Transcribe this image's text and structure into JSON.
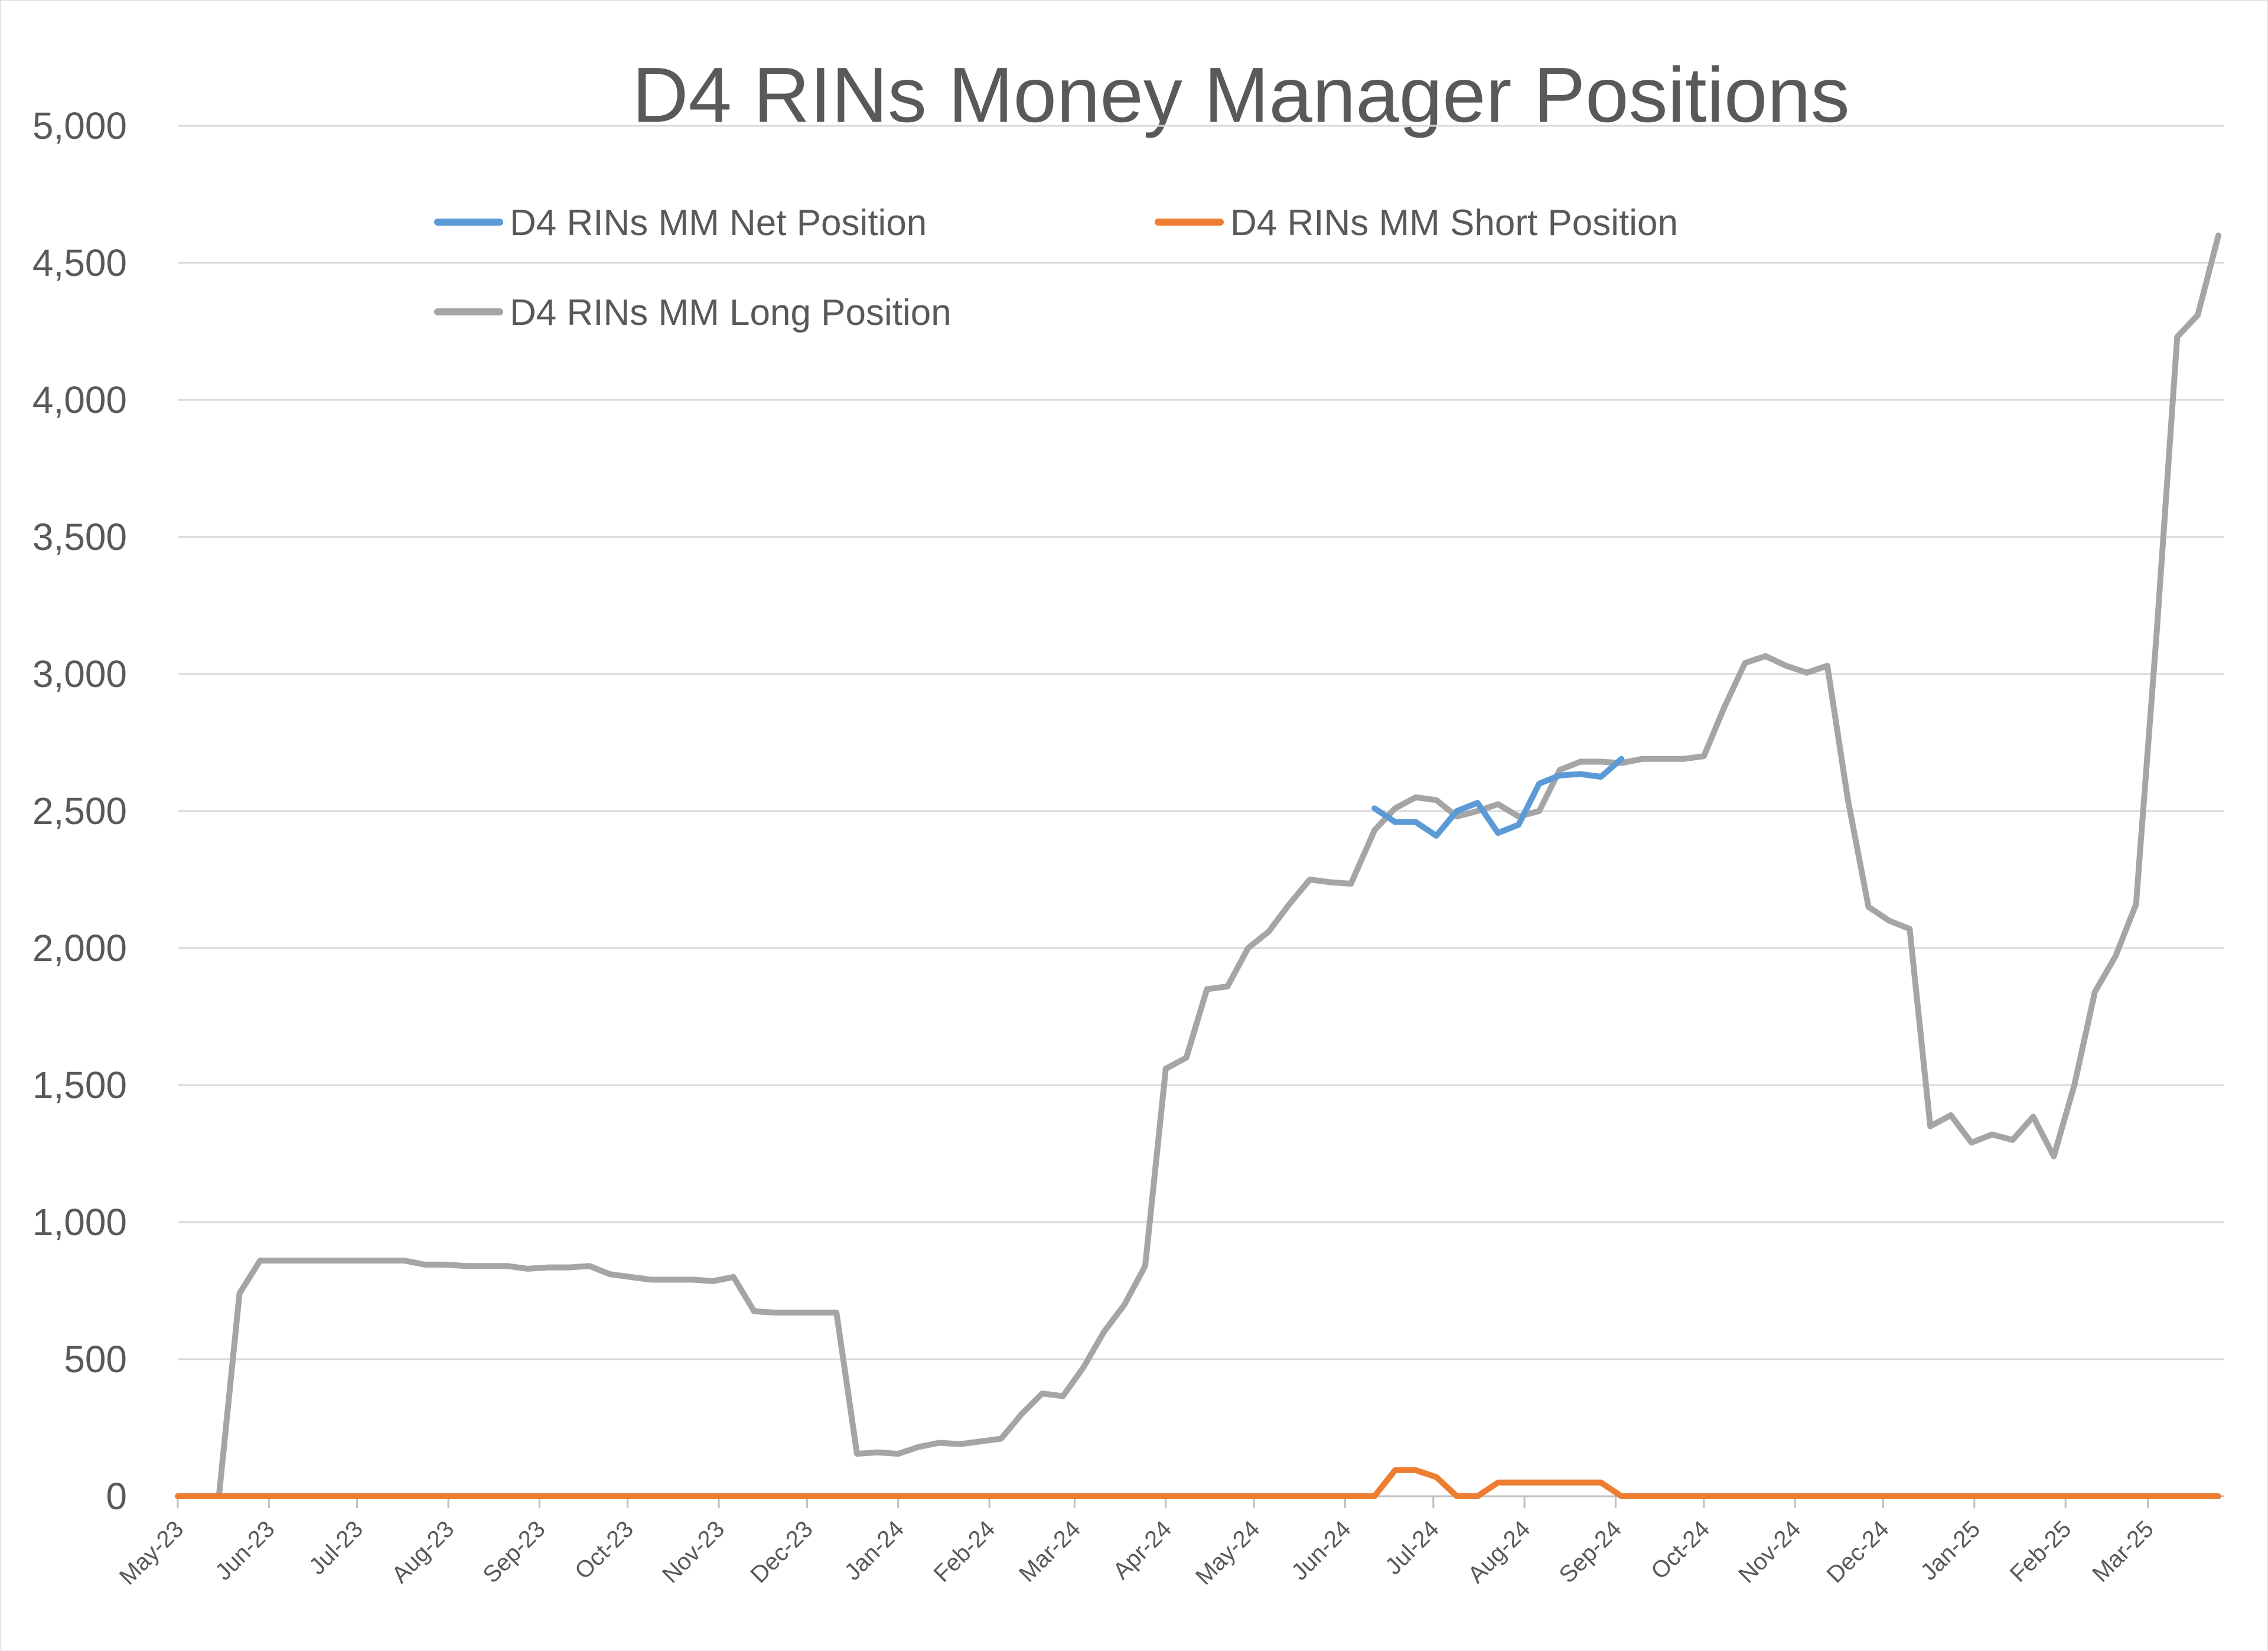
{
  "chart_data": {
    "type": "line",
    "title": "D4 RINs Money Manager Positions",
    "xlabel": "",
    "ylabel": "",
    "ylim": [
      0,
      5000
    ],
    "y_ticks": [
      0,
      500,
      1000,
      1500,
      2000,
      2500,
      3000,
      3500,
      4000,
      4500,
      5000
    ],
    "y_tick_labels": [
      "0",
      "500",
      "1,000",
      "1,500",
      "2,000",
      "2,500",
      "3,000",
      "3,500",
      "4,000",
      "4,500",
      "5,000"
    ],
    "x_tick_labels": [
      "May-23",
      "Jun-23",
      "Jul-23",
      "Aug-23",
      "Sep-23",
      "Oct-23",
      "Nov-23",
      "Dec-23",
      "Jan-24",
      "Feb-24",
      "Mar-24",
      "Apr-24",
      "May-24",
      "Jun-24",
      "Jul-24",
      "Aug-24",
      "Sep-24",
      "Oct-24",
      "Nov-24",
      "Dec-24",
      "Jan-25",
      "Feb-25",
      "Mar-25"
    ],
    "grid": true,
    "legend_position": "top",
    "series": [
      {
        "name": "D4 RINs MM Net Position",
        "color": "#5b9bd5",
        "points": [
          [
            "2024-06-11",
            2510
          ],
          [
            "2024-06-18",
            2460
          ],
          [
            "2024-06-25",
            2460
          ],
          [
            "2024-07-02",
            2410
          ],
          [
            "2024-07-09",
            2500
          ],
          [
            "2024-07-16",
            2530
          ],
          [
            "2024-07-23",
            2420
          ],
          [
            "2024-07-30",
            2450
          ],
          [
            "2024-08-06",
            2600
          ],
          [
            "2024-08-13",
            2630
          ],
          [
            "2024-08-20",
            2635
          ],
          [
            "2024-08-27",
            2625
          ],
          [
            "2024-09-03",
            2690
          ]
        ]
      },
      {
        "name": "D4 RINs MM Short Position",
        "color": "#ed7d31",
        "points": [
          [
            "2023-05-01",
            0
          ],
          [
            "2024-06-11",
            0
          ],
          [
            "2024-06-18",
            95
          ],
          [
            "2024-06-25",
            95
          ],
          [
            "2024-07-02",
            70
          ],
          [
            "2024-07-09",
            0
          ],
          [
            "2024-07-16",
            0
          ],
          [
            "2024-07-23",
            50
          ],
          [
            "2024-07-30",
            50
          ],
          [
            "2024-08-06",
            50
          ],
          [
            "2024-08-13",
            50
          ],
          [
            "2024-08-20",
            50
          ],
          [
            "2024-08-27",
            50
          ],
          [
            "2024-09-03",
            0
          ],
          [
            "2025-03-25",
            0
          ]
        ]
      },
      {
        "name": "D4 RINs MM Long Position",
        "color": "#a5a5a5",
        "points": [
          [
            "2023-05-01",
            0
          ],
          [
            "2023-05-08",
            0
          ],
          [
            "2023-05-15",
            0
          ],
          [
            "2023-05-22",
            740
          ],
          [
            "2023-05-29",
            860
          ],
          [
            "2023-06-05",
            860
          ],
          [
            "2023-06-12",
            860
          ],
          [
            "2023-06-19",
            860
          ],
          [
            "2023-06-26",
            860
          ],
          [
            "2023-07-03",
            860
          ],
          [
            "2023-07-10",
            860
          ],
          [
            "2023-07-17",
            860
          ],
          [
            "2023-07-24",
            845
          ],
          [
            "2023-07-31",
            845
          ],
          [
            "2023-08-07",
            840
          ],
          [
            "2023-08-14",
            840
          ],
          [
            "2023-08-21",
            840
          ],
          [
            "2023-08-28",
            830
          ],
          [
            "2023-09-04",
            835
          ],
          [
            "2023-09-11",
            835
          ],
          [
            "2023-09-18",
            840
          ],
          [
            "2023-09-25",
            810
          ],
          [
            "2023-10-02",
            800
          ],
          [
            "2023-10-09",
            790
          ],
          [
            "2023-10-16",
            790
          ],
          [
            "2023-10-23",
            790
          ],
          [
            "2023-10-30",
            785
          ],
          [
            "2023-11-06",
            800
          ],
          [
            "2023-11-13",
            675
          ],
          [
            "2023-11-20",
            670
          ],
          [
            "2023-11-27",
            670
          ],
          [
            "2023-12-04",
            670
          ],
          [
            "2023-12-11",
            670
          ],
          [
            "2023-12-18",
            155
          ],
          [
            "2023-12-25",
            160
          ],
          [
            "2024-01-01",
            155
          ],
          [
            "2024-01-08",
            180
          ],
          [
            "2024-01-15",
            195
          ],
          [
            "2024-01-22",
            190
          ],
          [
            "2024-01-29",
            200
          ],
          [
            "2024-02-05",
            210
          ],
          [
            "2024-02-12",
            300
          ],
          [
            "2024-02-19",
            375
          ],
          [
            "2024-02-26",
            365
          ],
          [
            "2024-03-04",
            470
          ],
          [
            "2024-03-11",
            600
          ],
          [
            "2024-03-18",
            700
          ],
          [
            "2024-03-25",
            840
          ],
          [
            "2024-04-01",
            1560
          ],
          [
            "2024-04-08",
            1600
          ],
          [
            "2024-04-15",
            1850
          ],
          [
            "2024-04-22",
            1860
          ],
          [
            "2024-04-29",
            2000
          ],
          [
            "2024-05-06",
            2060
          ],
          [
            "2024-05-13",
            2160
          ],
          [
            "2024-05-20",
            2250
          ],
          [
            "2024-05-27",
            2240
          ],
          [
            "2024-06-03",
            2235
          ],
          [
            "2024-06-11",
            2430
          ],
          [
            "2024-06-18",
            2510
          ],
          [
            "2024-06-25",
            2550
          ],
          [
            "2024-07-02",
            2540
          ],
          [
            "2024-07-09",
            2480
          ],
          [
            "2024-07-16",
            2500
          ],
          [
            "2024-07-23",
            2525
          ],
          [
            "2024-07-30",
            2480
          ],
          [
            "2024-08-06",
            2500
          ],
          [
            "2024-08-13",
            2650
          ],
          [
            "2024-08-20",
            2680
          ],
          [
            "2024-08-27",
            2680
          ],
          [
            "2024-09-03",
            2675
          ],
          [
            "2024-09-10",
            2690
          ],
          [
            "2024-09-17",
            2690
          ],
          [
            "2024-09-24",
            2690
          ],
          [
            "2024-10-01",
            2700
          ],
          [
            "2024-10-08",
            2880
          ],
          [
            "2024-10-15",
            3040
          ],
          [
            "2024-10-22",
            3065
          ],
          [
            "2024-10-29",
            3030
          ],
          [
            "2024-11-05",
            3005
          ],
          [
            "2024-11-12",
            3030
          ],
          [
            "2024-11-19",
            2540
          ],
          [
            "2024-11-26",
            2150
          ],
          [
            "2024-12-03",
            2100
          ],
          [
            "2024-12-10",
            2070
          ],
          [
            "2024-12-17",
            1350
          ],
          [
            "2024-12-24",
            1390
          ],
          [
            "2024-12-31",
            1290
          ],
          [
            "2025-01-07",
            1320
          ],
          [
            "2025-01-14",
            1300
          ],
          [
            "2025-01-21",
            1385
          ],
          [
            "2025-01-28",
            1240
          ],
          [
            "2025-02-04",
            1500
          ],
          [
            "2025-02-11",
            1840
          ],
          [
            "2025-02-18",
            1970
          ],
          [
            "2025-02-25",
            2160
          ],
          [
            "2025-03-04",
            3150
          ],
          [
            "2025-03-11",
            4230
          ],
          [
            "2025-03-18",
            4310
          ],
          [
            "2025-03-25",
            4600
          ]
        ]
      }
    ]
  }
}
